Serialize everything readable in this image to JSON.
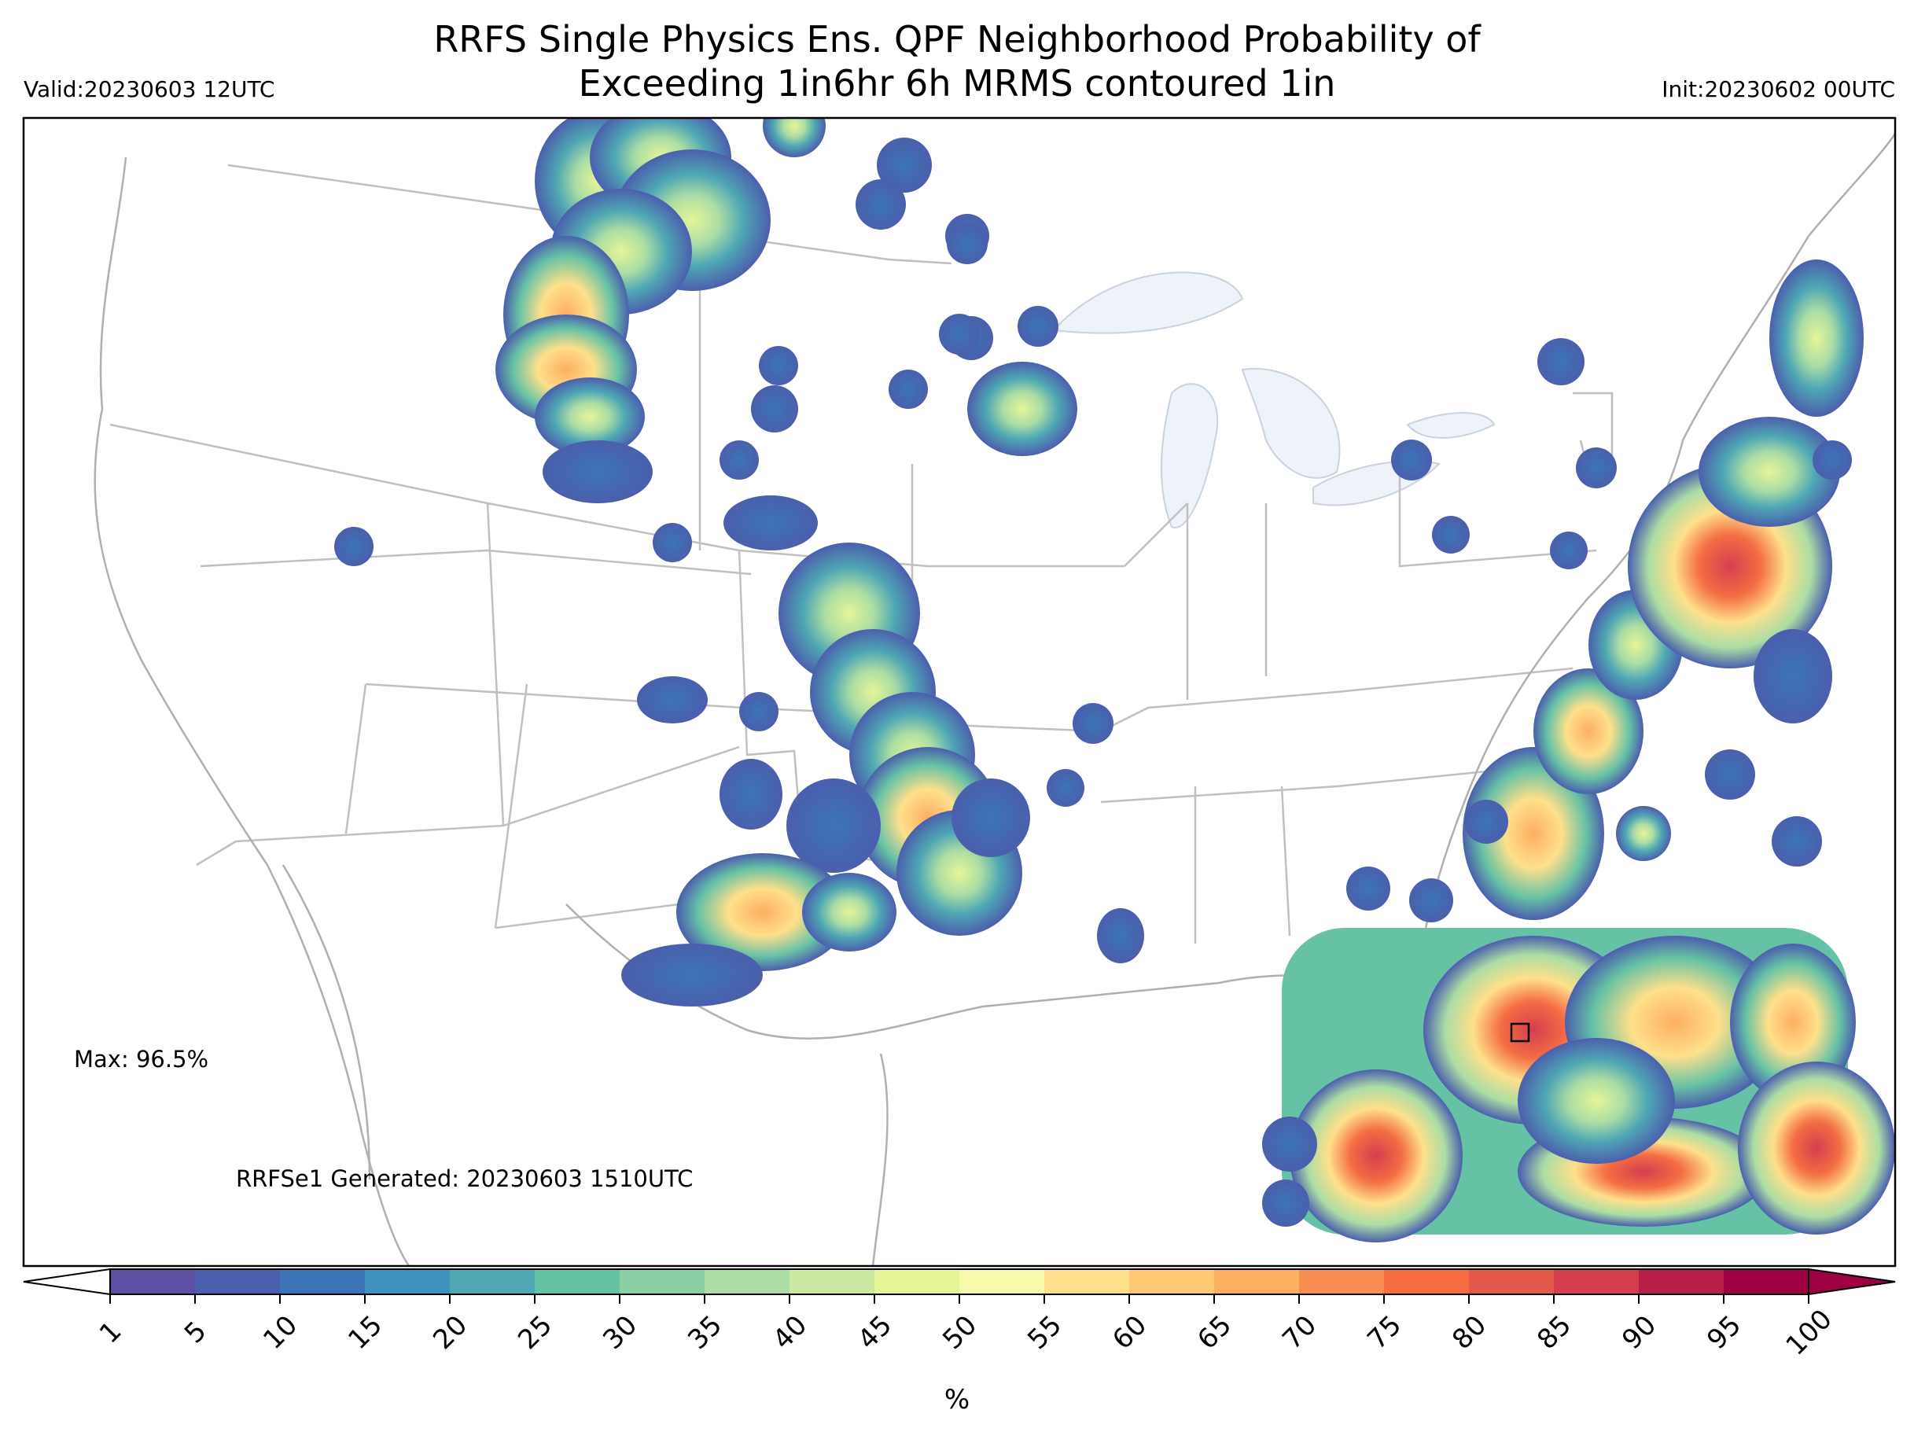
{
  "header": {
    "title_line1": "RRFS Single Physics Ens. QPF Neighborhood Probability of",
    "title_line2": "Exceeding 1in6hr 6h MRMS contoured 1in",
    "valid": "Valid:20230603 12UTC",
    "init": "Init:20230602 00UTC"
  },
  "annotations": {
    "max": "Max: 96.5%",
    "generated": "RRFSe1 Generated: 20230603 1510UTC"
  },
  "colorbar": {
    "unit": "%",
    "ticks": [
      "1",
      "5",
      "10",
      "15",
      "20",
      "25",
      "30",
      "35",
      "40",
      "45",
      "50",
      "55",
      "60",
      "65",
      "70",
      "75",
      "80",
      "85",
      "90",
      "95",
      "100"
    ],
    "colors": [
      "#5e4fa2",
      "#4b5fad",
      "#3b75b5",
      "#3f90bb",
      "#4fa7b4",
      "#66c2a5",
      "#8ad0a4",
      "#abdda4",
      "#cbe9a0",
      "#e6f598",
      "#f7f9ad",
      "#fee08b",
      "#fdc774",
      "#fdae61",
      "#f98e52",
      "#f46d43",
      "#e45a4a",
      "#d53e4f",
      "#b51f48",
      "#9e0142"
    ],
    "under_color": "#ffffff",
    "over_color": "#9e0142"
  }
}
